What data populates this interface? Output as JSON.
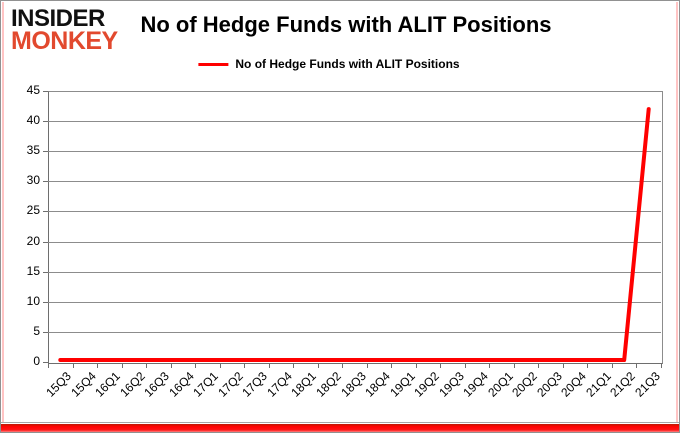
{
  "logo": {
    "line1": "INSIDER",
    "line2": "MONKEY"
  },
  "header": {
    "title": "No of Hedge Funds with ALIT Positions"
  },
  "legend": {
    "label": "No of Hedge Funds with ALIT Positions"
  },
  "colors": {
    "series_red": "#ff0000",
    "logo_red": "#e2492e",
    "gridline_gray": "#8c8c8c",
    "axis_gray": "#6e6e6e",
    "side_glow_pink": "#ffc4c4",
    "bottom_bar_red": "#ff0000"
  },
  "chart_data": {
    "type": "line",
    "title": "No of Hedge Funds with ALIT Positions",
    "categories": [
      "15Q3",
      "15Q4",
      "16Q1",
      "16Q2",
      "16Q3",
      "16Q4",
      "17Q1",
      "17Q2",
      "17Q3",
      "17Q4",
      "18Q1",
      "18Q2",
      "18Q3",
      "18Q4",
      "19Q1",
      "19Q2",
      "19Q3",
      "19Q4",
      "20Q1",
      "20Q2",
      "20Q3",
      "20Q4",
      "21Q1",
      "21Q2",
      "21Q3"
    ],
    "series": [
      {
        "name": "No of Hedge Funds with ALIT Positions",
        "color": "#ff0000",
        "values": [
          0,
          0,
          0,
          0,
          0,
          0,
          0,
          0,
          0,
          0,
          0,
          0,
          0,
          0,
          0,
          0,
          0,
          0,
          0,
          0,
          0,
          0,
          0,
          0,
          42
        ]
      }
    ],
    "ylim": [
      0,
      45
    ],
    "yticks": [
      0,
      5,
      10,
      15,
      20,
      25,
      30,
      35,
      40,
      45
    ],
    "xlabel": "",
    "ylabel": "",
    "grid": "horizontal",
    "legend_position": "top-center"
  }
}
